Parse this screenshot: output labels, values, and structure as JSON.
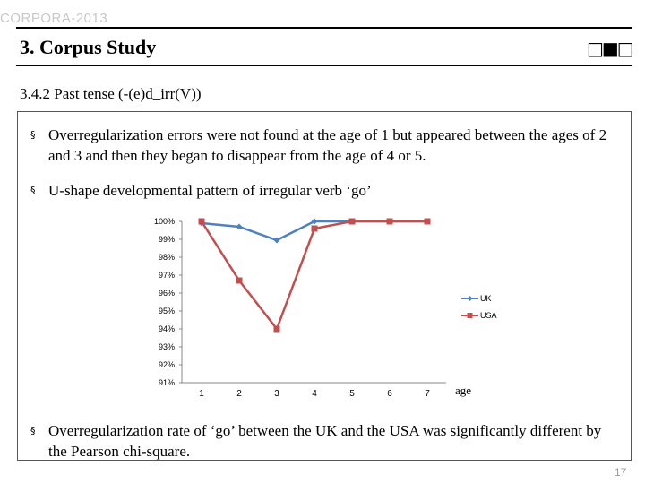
{
  "header": {
    "course_label": "CORPORA-2013"
  },
  "slide": {
    "title": "3. Corpus Study",
    "logo": "□■□",
    "subtitle": "3.4.2 Past tense (-(e)d_irr(V))",
    "bullets": [
      "Overregularization errors were not found at the age of 1 but appeared between the ages of 2 and 3 and then they began to disappear from the age of 4 or 5.",
      "U-shape developmental pattern of irregular verb ‘go’",
      "Overregularization rate of ‘go’ between the UK and the USA was significantly different by the Pearson chi-square."
    ],
    "bullet_mark": "§",
    "page_number": "17"
  },
  "chart_data": {
    "type": "line",
    "categories": [
      "1",
      "2",
      "3",
      "4",
      "5",
      "6",
      "7"
    ],
    "xlabel": "age",
    "ylim": [
      91,
      100
    ],
    "yticks": [
      "91%",
      "92%",
      "93%",
      "94%",
      "95%",
      "96%",
      "97%",
      "98%",
      "99%",
      "100%"
    ],
    "grid": false,
    "legend_position": "right",
    "series": [
      {
        "name": "UK",
        "color": "#4f81bd",
        "marker": "diamond",
        "values": [
          99.9,
          99.7,
          98.95,
          100,
          100,
          100,
          100
        ]
      },
      {
        "name": "USA",
        "color": "#c0504d",
        "marker": "square",
        "values": [
          100,
          96.7,
          94.0,
          99.6,
          100,
          100,
          100
        ]
      }
    ]
  }
}
